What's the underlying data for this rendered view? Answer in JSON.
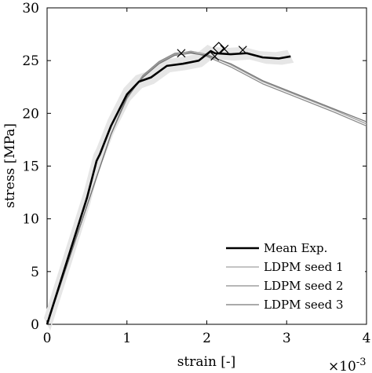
{
  "chart_data": {
    "type": "line",
    "xlabel": "strain [-]",
    "ylabel": "stress [MPa]",
    "x_multiplier": "×10",
    "x_multiplier_exp": "-3",
    "xlim": [
      0,
      4
    ],
    "ylim": [
      0,
      30
    ],
    "xticks": [
      0,
      1,
      2,
      3,
      4
    ],
    "yticks": [
      0,
      5,
      10,
      15,
      20,
      25,
      30
    ],
    "grid": false,
    "legend_position": "bottom-right",
    "series": [
      {
        "name": "Mean Exp.",
        "color": "#000000",
        "x": [
          0,
          0.25,
          0.5,
          0.62,
          0.66,
          0.8,
          1.0,
          1.15,
          1.3,
          1.5,
          1.7,
          1.9,
          2.05,
          2.1,
          2.3,
          2.5,
          2.7,
          2.9,
          3.05
        ],
        "y": [
          0,
          6,
          12,
          15.5,
          16.1,
          18.8,
          21.8,
          23.0,
          23.4,
          24.5,
          24.7,
          25.0,
          25.9,
          25.7,
          25.6,
          25.7,
          25.3,
          25.2,
          25.4
        ]
      },
      {
        "name": "LDPM seed 1",
        "color": "#a0a0a0",
        "x": [
          0,
          0.4,
          0.8,
          1.0,
          1.2,
          1.4,
          1.6,
          1.8,
          2.0,
          2.3,
          2.7,
          3.2,
          3.6,
          4.0
        ],
        "y": [
          0,
          9,
          18,
          21.5,
          23.5,
          24.8,
          25.6,
          25.9,
          25.6,
          24.6,
          23.0,
          21.5,
          20.3,
          19.0
        ]
      },
      {
        "name": "LDPM seed 2",
        "color": "#8c8c8c",
        "x": [
          0,
          0.4,
          0.8,
          1.0,
          1.2,
          1.4,
          1.6,
          1.8,
          2.0,
          2.3,
          2.7,
          3.2,
          3.6,
          4.0
        ],
        "y": [
          0,
          9,
          18,
          21.4,
          23.6,
          24.9,
          25.7,
          25.8,
          25.4,
          24.4,
          22.8,
          21.3,
          20.1,
          18.8
        ]
      },
      {
        "name": "LDPM seed 3",
        "color": "#777777",
        "x": [
          0,
          0.4,
          0.8,
          1.0,
          1.2,
          1.4,
          1.6,
          1.8,
          2.0,
          2.3,
          2.7,
          3.2,
          3.6,
          4.0
        ],
        "y": [
          0,
          9,
          18,
          21.6,
          23.4,
          24.7,
          25.5,
          25.7,
          25.5,
          24.7,
          23.1,
          21.6,
          20.4,
          19.2
        ]
      }
    ],
    "markers": [
      {
        "shape": "x",
        "x": 1.68,
        "y": 25.7
      },
      {
        "shape": "x",
        "x": 2.1,
        "y": 25.4
      },
      {
        "shape": "x",
        "x": 2.22,
        "y": 26.1
      },
      {
        "shape": "x",
        "x": 2.45,
        "y": 26.0
      },
      {
        "shape": "diamond",
        "x": 2.15,
        "y": 26.2
      }
    ]
  }
}
